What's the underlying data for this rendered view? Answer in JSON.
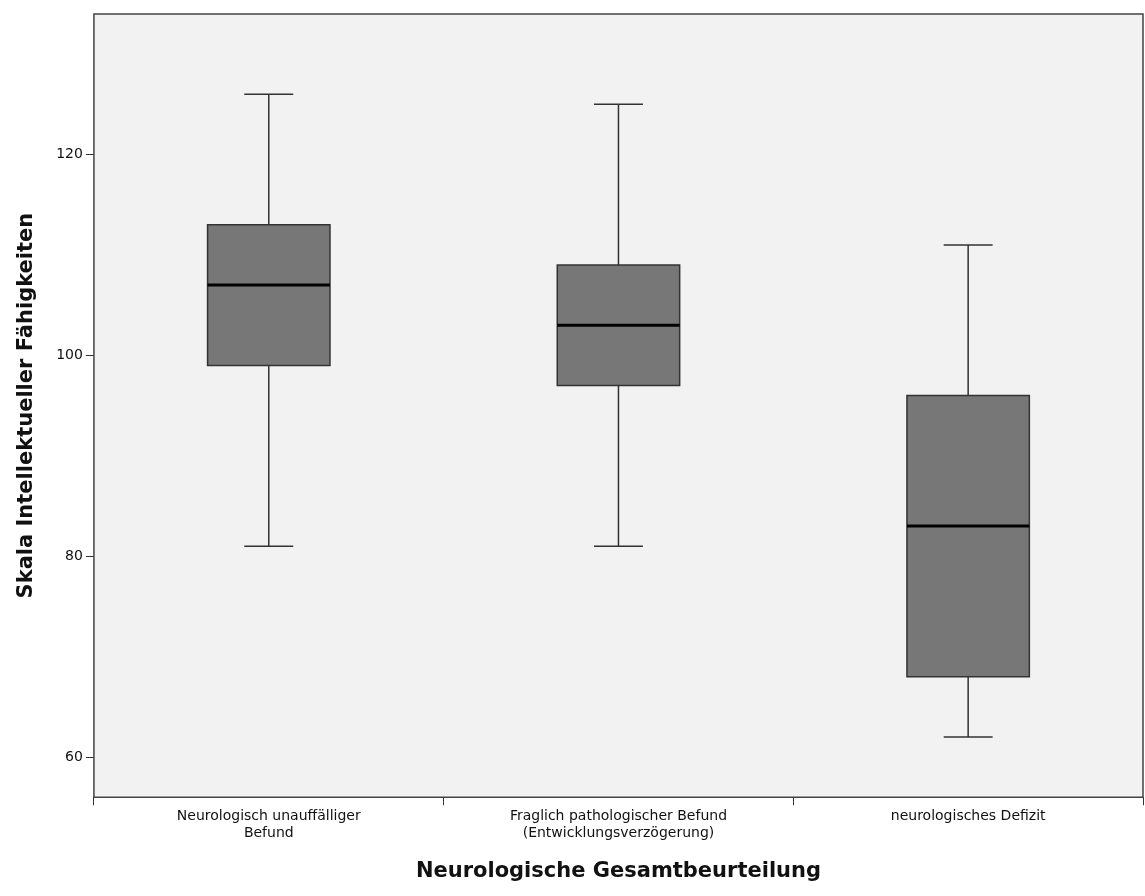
{
  "chart_data": {
    "type": "box",
    "xlabel": "Neurologische Gesamtbeurteilung",
    "ylabel": "Skala Intellektueller Fähigkeiten",
    "categories": [
      "Neurologisch unauffälliger\nBefund",
      "Fraglich pathologischer Befund\n(Entwicklungsverzögerung)",
      "neurologisches Defizit"
    ],
    "boxes": [
      {
        "low": 81,
        "q1": 99,
        "median": 107,
        "q3": 113,
        "high": 126
      },
      {
        "low": 81,
        "q1": 97,
        "median": 103,
        "q3": 109,
        "high": 125
      },
      {
        "low": 62,
        "q1": 68,
        "median": 83,
        "q3": 96,
        "high": 111
      }
    ],
    "color": "#777777",
    "ylim": [
      56,
      134
    ],
    "yticks": [
      60,
      80,
      100,
      120
    ],
    "grid": false,
    "legend": false
  }
}
